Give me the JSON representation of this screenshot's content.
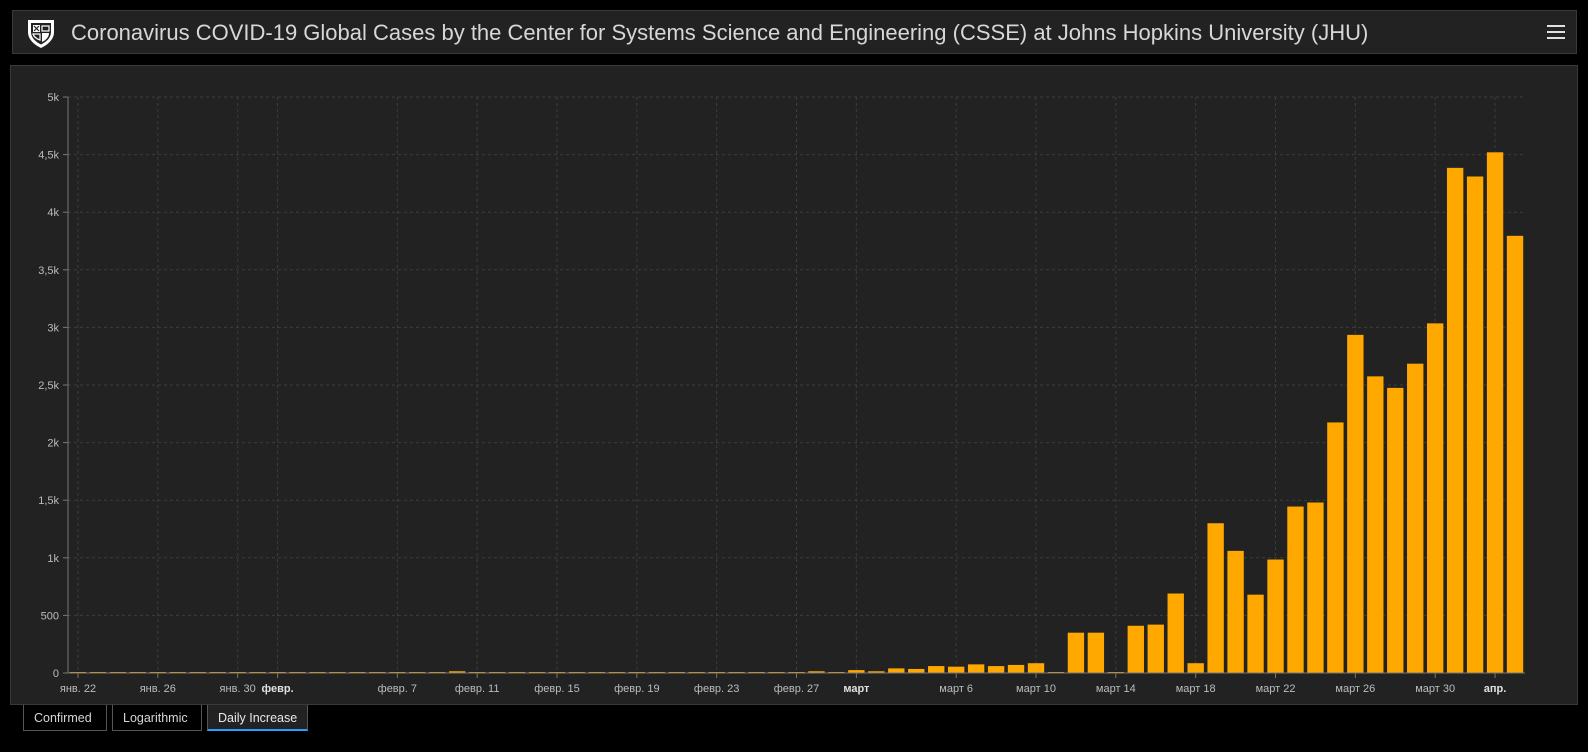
{
  "header": {
    "title": "Coronavirus COVID-19 Global Cases by the Center for Systems Science and Engineering (CSSE) at Johns Hopkins University (JHU)",
    "logo_icon": "university-shield-icon",
    "menu_icon": "hamburger-menu-icon"
  },
  "tabs": [
    {
      "label": "Confirmed",
      "active": false
    },
    {
      "label": "Logarithmic",
      "active": false
    },
    {
      "label": "Daily Increase",
      "active": true
    }
  ],
  "colors": {
    "bar": "#ffa800",
    "background": "#222222",
    "grid": "#3d3d3d",
    "axis_text": "#bcbcbc",
    "active_tab_underline": "#2e9bff"
  },
  "chart_data": {
    "type": "bar",
    "ylim": [
      0,
      5000
    ],
    "yticks": [
      {
        "value": 0,
        "label": "0"
      },
      {
        "value": 500,
        "label": "500"
      },
      {
        "value": 1000,
        "label": "1k"
      },
      {
        "value": 1500,
        "label": "1,5k"
      },
      {
        "value": 2000,
        "label": "2k"
      },
      {
        "value": 2500,
        "label": "2,5k"
      },
      {
        "value": 3000,
        "label": "3k"
      },
      {
        "value": 3500,
        "label": "3,5k"
      },
      {
        "value": 4000,
        "label": "4k"
      },
      {
        "value": 4500,
        "label": "4,5k"
      },
      {
        "value": 5000,
        "label": "5k"
      }
    ],
    "xticks": [
      {
        "index": 0,
        "label": "янв. 22",
        "bold": false
      },
      {
        "index": 4,
        "label": "янв. 26",
        "bold": false
      },
      {
        "index": 8,
        "label": "янв. 30",
        "bold": false
      },
      {
        "index": 10,
        "label": "февр.",
        "bold": true
      },
      {
        "index": 16,
        "label": "февр. 7",
        "bold": false
      },
      {
        "index": 20,
        "label": "февр. 11",
        "bold": false
      },
      {
        "index": 24,
        "label": "февр. 15",
        "bold": false
      },
      {
        "index": 28,
        "label": "февр. 19",
        "bold": false
      },
      {
        "index": 32,
        "label": "февр. 23",
        "bold": false
      },
      {
        "index": 36,
        "label": "февр. 27",
        "bold": false
      },
      {
        "index": 39,
        "label": "март",
        "bold": true
      },
      {
        "index": 44,
        "label": "март 6",
        "bold": false
      },
      {
        "index": 48,
        "label": "март 10",
        "bold": false
      },
      {
        "index": 52,
        "label": "март 14",
        "bold": false
      },
      {
        "index": 56,
        "label": "март 18",
        "bold": false
      },
      {
        "index": 60,
        "label": "март 22",
        "bold": false
      },
      {
        "index": 64,
        "label": "март 26",
        "bold": false
      },
      {
        "index": 68,
        "label": "март 30",
        "bold": false
      },
      {
        "index": 71,
        "label": "апр.",
        "bold": true
      }
    ],
    "values": [
      0,
      0,
      0,
      0,
      0,
      0,
      0,
      0,
      0,
      0,
      0,
      0,
      0,
      0,
      0,
      0,
      0,
      0,
      0,
      15,
      0,
      0,
      0,
      0,
      0,
      0,
      0,
      0,
      0,
      0,
      0,
      0,
      0,
      0,
      0,
      0,
      0,
      15,
      5,
      25,
      15,
      40,
      35,
      60,
      55,
      75,
      60,
      70,
      85,
      5,
      350,
      350,
      5,
      410,
      420,
      690,
      85,
      1300,
      1060,
      680,
      985,
      1445,
      1480,
      2175,
      2935,
      2575,
      2475,
      2685,
      3035,
      4385,
      4310,
      4520,
      3795
    ]
  }
}
